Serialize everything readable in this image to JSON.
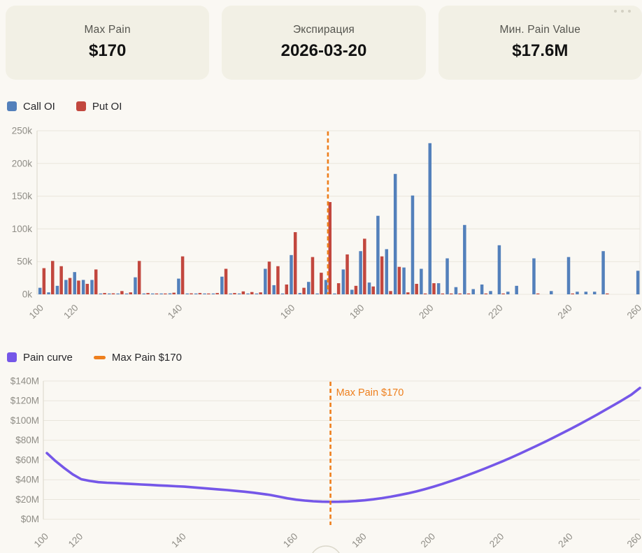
{
  "cards": [
    {
      "title": "Max Pain",
      "value": "$170"
    },
    {
      "title": "Экспирация",
      "value": "2026-03-20"
    },
    {
      "title": "Мин. Pain Value",
      "value": "$17.6M"
    }
  ],
  "oi_legend": [
    {
      "label": "Call OI",
      "color": "#5380bb"
    },
    {
      "label": "Put OI",
      "color": "#c2473e"
    }
  ],
  "pain_legend": [
    {
      "label": "Pain curve",
      "color": "#7557e8"
    },
    {
      "label": "Max Pain $170",
      "color": "#ee7f1d"
    }
  ],
  "colors": {
    "call": "#5380bb",
    "put": "#c2473e",
    "pain_line": "#7557e8",
    "max_pain_line": "#ee7f1d",
    "grid": "#e9e6dc",
    "axis": "#d9d6ca",
    "tick_text": "#8f8d86"
  },
  "chart_data": [
    {
      "type": "bar",
      "title": "",
      "legend_position": "top-left",
      "grid": true,
      "categories": [
        100,
        105,
        110,
        115,
        120,
        121.5,
        123.5,
        125,
        126.5,
        128.5,
        130,
        131.5,
        133.5,
        135,
        136.5,
        138.5,
        140,
        141.5,
        143,
        144.5,
        146,
        147.5,
        149,
        150.5,
        152.5,
        154,
        155.5,
        157,
        158.5,
        160,
        162.5,
        165,
        167.5,
        170,
        172.5,
        175,
        177.5,
        180,
        182.5,
        185,
        187.5,
        190,
        192.5,
        195,
        197.5,
        200,
        202.5,
        205,
        207.5,
        210,
        212.5,
        215,
        217.5,
        220,
        222.5,
        225,
        227.5,
        230,
        232.5,
        235,
        237.5,
        240,
        242.5,
        245,
        247.5,
        250,
        252.5,
        255,
        257.5,
        260
      ],
      "series": [
        {
          "name": "Call OI",
          "values": [
            10000,
            3000,
            13000,
            22000,
            34000,
            22000,
            22000,
            1000,
            1000,
            1000,
            500,
            26000,
            1000,
            1000,
            1000,
            1500,
            24000,
            500,
            1000,
            1000,
            1000,
            27000,
            500,
            500,
            500,
            500,
            39000,
            14000,
            1000,
            60000,
            2000,
            19000,
            1000,
            22000,
            1000,
            38000,
            7000,
            66000,
            18000,
            120000,
            69000,
            184000,
            41000,
            151000,
            39000,
            231000,
            17000,
            55000,
            11000,
            106000,
            8000,
            15000,
            5000,
            75000,
            4000,
            13000,
            0,
            55000,
            0,
            5000,
            0,
            57000,
            4000,
            4000,
            4000,
            66000,
            0,
            0,
            0,
            36000
          ]
        },
        {
          "name": "Put OI",
          "values": [
            40000,
            51000,
            43000,
            25000,
            21000,
            16000,
            38000,
            2000,
            1500,
            5000,
            3000,
            51000,
            2000,
            1000,
            1000,
            2500,
            58000,
            1500,
            2000,
            1000,
            2000,
            39000,
            2000,
            4500,
            3500,
            3000,
            50000,
            43000,
            15000,
            95000,
            10000,
            57000,
            33000,
            141000,
            17000,
            61000,
            13000,
            85000,
            12000,
            58000,
            5000,
            42000,
            3000,
            16000,
            1000,
            17000,
            1000,
            1000,
            500,
            1000,
            0,
            500,
            0,
            1000,
            0,
            0,
            0,
            1000,
            0,
            0,
            0,
            1000,
            0,
            0,
            0,
            1000,
            0,
            0,
            0,
            0
          ]
        }
      ],
      "ylim": [
        0,
        250000
      ],
      "y_ticks": [
        "0k",
        "50k",
        "100k",
        "150k",
        "200k",
        "250k"
      ],
      "x_ticks_shown": [
        100,
        120,
        140,
        160,
        180,
        200,
        220,
        240,
        260
      ],
      "max_pain": {
        "strike": 170
      }
    },
    {
      "type": "line",
      "title": "",
      "legend_position": "top-left",
      "grid": true,
      "x": [
        100,
        105,
        110,
        115,
        120,
        121.5,
        123.5,
        125,
        126.5,
        128.5,
        130,
        131.5,
        133.5,
        135,
        136.5,
        138.5,
        140,
        141.5,
        143,
        144.5,
        146,
        147.5,
        149,
        150.5,
        152.5,
        154,
        155.5,
        157,
        158.5,
        160,
        162.5,
        165,
        167.5,
        170,
        172.5,
        175,
        177.5,
        180,
        182.5,
        185,
        187.5,
        190,
        192.5,
        195,
        197.5,
        200,
        202.5,
        205,
        207.5,
        210,
        212.5,
        215,
        217.5,
        220,
        222.5,
        225,
        227.5,
        230,
        232.5,
        235,
        237.5,
        240,
        242.5,
        245,
        247.5,
        250,
        252.5,
        255,
        257.5,
        260
      ],
      "series": [
        {
          "name": "Pain curve",
          "values_musd": [
            67,
            59,
            52,
            45.5,
            40.5,
            38.8,
            37.5,
            37,
            36.6,
            36.1,
            35.7,
            35.2,
            34.8,
            34.3,
            33.9,
            33.4,
            33,
            32.3,
            31.6,
            30.9,
            30.2,
            29.5,
            28.7,
            27.9,
            26.9,
            25.8,
            24.6,
            22.9,
            21.2,
            19.8,
            18.9,
            18.2,
            17.8,
            17.6,
            17.7,
            18,
            18.5,
            19.2,
            20.2,
            21.4,
            22.8,
            24.4,
            26.2,
            28.2,
            30.5,
            33,
            35.7,
            38.6,
            41.6,
            44.8,
            48.1,
            51.5,
            55,
            58.6,
            62.4,
            66.3,
            70.3,
            74.4,
            78.6,
            82.9,
            87.3,
            91.8,
            96.4,
            101.1,
            105.9,
            110.8,
            115.8,
            120.9,
            126.1,
            133
          ]
        }
      ],
      "ylim_musd": [
        0,
        140
      ],
      "y_ticks": [
        "$0M",
        "$20M",
        "$40M",
        "$60M",
        "$80M",
        "$100M",
        "$120M",
        "$140M"
      ],
      "x_ticks_shown": [
        100,
        120,
        140,
        160,
        180,
        200,
        220,
        240,
        260
      ],
      "max_pain": {
        "strike": 170,
        "annotation": "Max Pain $170"
      }
    }
  ]
}
